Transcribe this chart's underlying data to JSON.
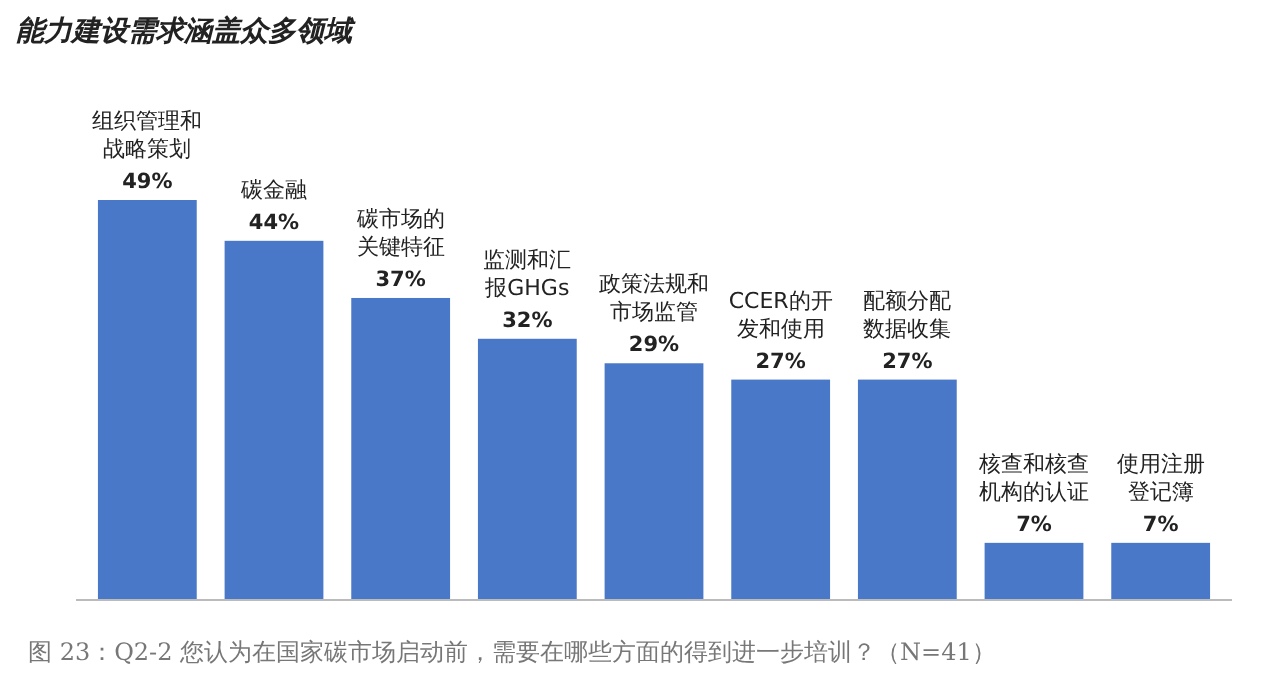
{
  "chart_data": {
    "type": "bar",
    "title": "能力建设需求涵盖众多领域",
    "categories": [
      "组织管理和战略策划",
      "碳金融",
      "碳市场的关键特征",
      "监测和汇报GHGs",
      "政策法规和市场监管",
      "CCER的开发和使用",
      "配额分配数据收集",
      "核查和核查机构的认证",
      "使用注册登记簿"
    ],
    "values": [
      49,
      44,
      37,
      32,
      29,
      27,
      27,
      7,
      7
    ],
    "value_labels": [
      "49%",
      "44%",
      "37%",
      "32%",
      "29%",
      "27%",
      "27%",
      "7%",
      "7%"
    ],
    "color": "#4a78c8",
    "annotations": [
      "图 23：Q2-2 您认为在国家碳市场启动前，需要在哪些方面的得到进一步培训？（N=41）"
    ]
  }
}
